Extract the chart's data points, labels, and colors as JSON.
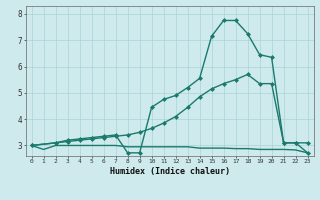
{
  "xlabel": "Humidex (Indice chaleur)",
  "bg_color": "#ceeaec",
  "grid_color": "#aad4d8",
  "line_color": "#1a7a6e",
  "xlim": [
    -0.5,
    23.5
  ],
  "ylim": [
    2.6,
    8.3
  ],
  "yticks": [
    3,
    4,
    5,
    6,
    7,
    8
  ],
  "xticks": [
    0,
    1,
    2,
    3,
    4,
    5,
    6,
    7,
    8,
    9,
    10,
    11,
    12,
    13,
    14,
    15,
    16,
    17,
    18,
    19,
    20,
    21,
    22,
    23
  ],
  "series": [
    {
      "x": [
        0,
        1,
        2,
        3,
        4,
        5,
        6,
        7,
        8,
        9,
        10,
        11,
        12,
        13,
        14,
        15,
        16,
        17,
        18,
        19,
        20,
        21,
        22,
        23
      ],
      "y": [
        3.0,
        2.85,
        3.0,
        3.0,
        3.0,
        3.0,
        3.0,
        3.0,
        2.95,
        2.95,
        2.95,
        2.95,
        2.95,
        2.95,
        2.9,
        2.9,
        2.9,
        2.88,
        2.88,
        2.85,
        2.85,
        2.85,
        2.83,
        2.72
      ],
      "marker": false,
      "lw": 1.0
    },
    {
      "x": [
        0,
        2,
        3,
        4,
        5,
        6,
        7,
        8,
        9,
        10,
        11,
        12,
        13,
        14,
        15,
        16,
        17,
        18,
        19,
        20,
        21,
        22,
        23
      ],
      "y": [
        3.0,
        3.1,
        3.15,
        3.2,
        3.25,
        3.3,
        3.35,
        3.4,
        3.5,
        3.65,
        3.85,
        4.1,
        4.45,
        4.85,
        5.15,
        5.35,
        5.5,
        5.7,
        5.35,
        5.35,
        3.1,
        3.1,
        2.72
      ],
      "marker": true,
      "lw": 1.0
    },
    {
      "x": [
        0,
        2,
        3,
        4,
        5,
        6,
        7,
        8,
        9,
        10,
        11,
        12,
        13,
        14,
        15,
        16,
        17,
        18,
        19,
        20,
        21,
        22,
        23
      ],
      "y": [
        3.0,
        3.1,
        3.2,
        3.25,
        3.3,
        3.35,
        3.4,
        2.72,
        2.72,
        4.45,
        4.75,
        4.9,
        5.2,
        5.55,
        7.15,
        7.75,
        7.75,
        7.25,
        6.45,
        6.35,
        3.1,
        3.1,
        3.1
      ],
      "marker": true,
      "lw": 1.0
    }
  ]
}
